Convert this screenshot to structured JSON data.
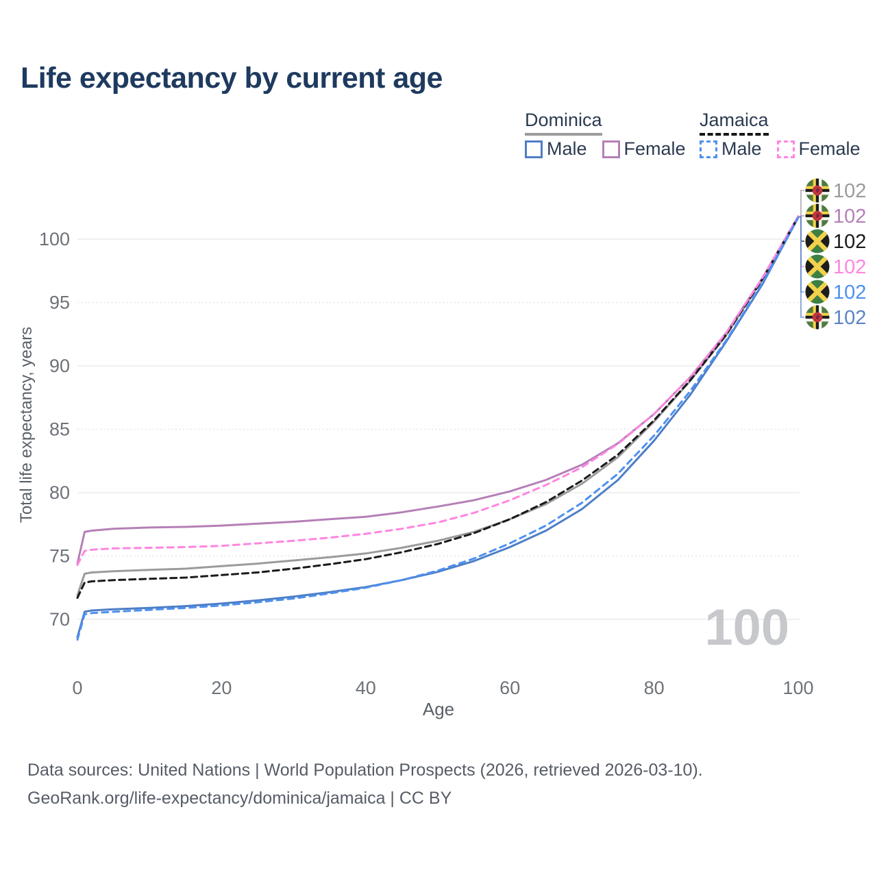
{
  "title": "Life expectancy by current age",
  "legend": {
    "groups": [
      {
        "id": "dominica",
        "label": "Dominica",
        "line_style": "solid",
        "underline_color": "#9a9b9d",
        "entries": [
          {
            "id": "dom-male",
            "label": "Male",
            "color": "#4d7ec6"
          },
          {
            "id": "dom-female",
            "label": "Female",
            "color": "#b57fb7"
          }
        ]
      },
      {
        "id": "jamaica",
        "label": "Jamaica",
        "line_style": "dashed",
        "underline_color": "#141414",
        "entries": [
          {
            "id": "jam-male",
            "label": "Male",
            "color": "#4e90f0"
          },
          {
            "id": "jam-female",
            "label": "Female",
            "color": "#ff85e0"
          }
        ]
      }
    ]
  },
  "chart_data": {
    "type": "line",
    "title": "Life expectancy by current age",
    "xlabel": "Age",
    "ylabel": "Total life expectancy, years",
    "xlim": [
      0,
      100
    ],
    "ylim": [
      67.5,
      103
    ],
    "x_ticks": [
      0,
      20,
      40,
      60,
      80,
      100
    ],
    "y_ticks": [
      70,
      75,
      80,
      85,
      90,
      95,
      100
    ],
    "grid": "horizontal-only",
    "hover_age_watermark": "100",
    "x": [
      0,
      1,
      2,
      5,
      10,
      15,
      20,
      25,
      30,
      35,
      40,
      45,
      50,
      55,
      60,
      65,
      70,
      75,
      80,
      85,
      90,
      95,
      100
    ],
    "series": [
      {
        "key": "dominica_total",
        "name": "Dominica Total",
        "color": "#9a9b9d",
        "dash": "none",
        "values": [
          71.9,
          73.6,
          73.7,
          73.8,
          73.9,
          74.0,
          74.2,
          74.4,
          74.65,
          74.9,
          75.2,
          75.65,
          76.2,
          76.9,
          77.9,
          79.1,
          80.7,
          82.8,
          85.6,
          88.8,
          92.4,
          96.8,
          101.75
        ]
      },
      {
        "key": "dominica_female",
        "name": "Dominica Female",
        "color": "#b57fb7",
        "dash": "none",
        "values": [
          74.4,
          76.9,
          77.0,
          77.15,
          77.25,
          77.3,
          77.4,
          77.55,
          77.7,
          77.9,
          78.1,
          78.45,
          78.9,
          79.4,
          80.1,
          81.0,
          82.2,
          83.9,
          86.2,
          89.1,
          92.6,
          96.9,
          101.8
        ]
      },
      {
        "key": "dominica_male",
        "name": "Dominica Male",
        "color": "#4d7ec6",
        "dash": "none",
        "values": [
          68.6,
          70.6,
          70.7,
          70.8,
          70.9,
          71.05,
          71.25,
          71.5,
          71.8,
          72.15,
          72.55,
          73.1,
          73.75,
          74.6,
          75.7,
          77.0,
          78.7,
          81.0,
          84.1,
          87.7,
          91.9,
          96.4,
          101.7
        ]
      },
      {
        "key": "jamaica_total",
        "name": "Jamaica Total",
        "color": "#1a1a1a",
        "dash": "9 6",
        "values": [
          71.7,
          72.9,
          73.0,
          73.1,
          73.2,
          73.3,
          73.5,
          73.7,
          74.0,
          74.35,
          74.75,
          75.3,
          75.95,
          76.8,
          77.9,
          79.25,
          80.95,
          83.0,
          85.7,
          88.85,
          92.45,
          96.8,
          101.75
        ]
      },
      {
        "key": "jamaica_female",
        "name": "Jamaica Female",
        "color": "#ff85e0",
        "dash": "9 7",
        "values": [
          74.3,
          75.4,
          75.5,
          75.6,
          75.65,
          75.7,
          75.8,
          76.0,
          76.2,
          76.45,
          76.75,
          77.15,
          77.65,
          78.4,
          79.4,
          80.6,
          82.0,
          83.85,
          86.2,
          89.1,
          92.6,
          96.9,
          101.8
        ]
      },
      {
        "key": "jamaica_male",
        "name": "Jamaica Male",
        "color": "#4e90f0",
        "dash": "9 7",
        "values": [
          68.4,
          70.4,
          70.5,
          70.6,
          70.75,
          70.9,
          71.1,
          71.35,
          71.65,
          72.05,
          72.5,
          73.1,
          73.85,
          74.8,
          76.0,
          77.4,
          79.2,
          81.5,
          84.5,
          88.0,
          92.0,
          96.5,
          101.7
        ]
      }
    ],
    "end_labels": [
      {
        "flag": "dominica",
        "value": "102",
        "color": "#9a9b9d",
        "series": "dominica_total"
      },
      {
        "flag": "dominica",
        "value": "102",
        "color": "#b57fb7",
        "series": "dominica_female"
      },
      {
        "flag": "jamaica",
        "value": "102",
        "color": "#1a1a1a",
        "series": "jamaica_total"
      },
      {
        "flag": "jamaica",
        "value": "102",
        "color": "#ff85e0",
        "series": "jamaica_female"
      },
      {
        "flag": "jamaica",
        "value": "102",
        "color": "#4e90f0",
        "series": "jamaica_male"
      },
      {
        "flag": "dominica",
        "value": "102",
        "color": "#5b84c4",
        "series": "dominica_male"
      }
    ]
  },
  "footer": {
    "line1": "Data sources: United Nations | World Population Prospects (2026, retrieved 2026-03-10).",
    "line2": "GeoRank.org/life-expectancy/dominica/jamaica | CC BY"
  }
}
